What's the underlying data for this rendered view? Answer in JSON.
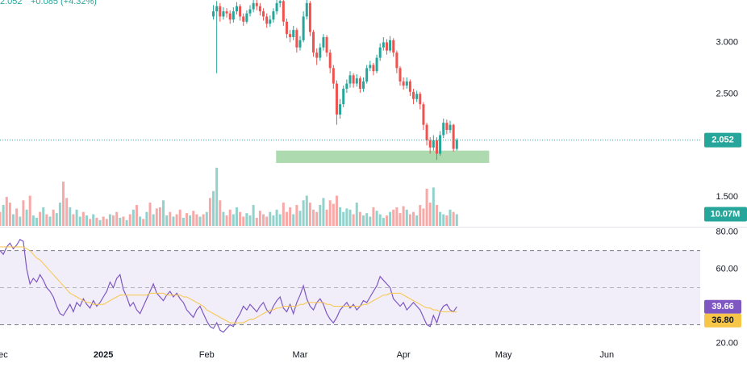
{
  "chart_data": [
    {
      "type": "candlestick",
      "change_label": "+0.085 (+4.32%)",
      "up_color": "#26a69a",
      "down_color": "#ef5350",
      "last_price_line": true,
      "xlim": [
        0,
        210
      ],
      "ylim": [
        1.22,
        3.41
      ],
      "yticks": [
        {
          "value": 3.0,
          "label": "3.000"
        },
        {
          "value": 2.5,
          "label": "2.500"
        },
        {
          "value": 1.5,
          "label": "1.500"
        }
      ],
      "zone": {
        "x": [
          82.8,
          146.7
        ],
        "y": [
          1.83,
          1.95
        ],
        "color": "#a5d6a7"
      },
      "x": [
        64,
        65,
        66,
        67,
        68,
        69,
        70,
        71,
        72,
        73,
        74,
        75,
        76,
        77,
        78,
        79,
        80,
        81,
        82,
        83,
        84,
        85,
        86,
        87,
        88,
        89,
        90,
        91,
        92,
        93,
        94,
        95,
        96,
        97,
        98,
        99,
        100,
        101,
        102,
        103,
        104,
        105,
        106,
        107,
        108,
        109,
        110,
        111,
        112,
        113,
        114,
        115,
        116,
        117,
        118,
        119,
        120,
        121,
        122,
        123,
        124,
        125,
        126,
        127,
        128,
        129,
        130,
        131,
        132,
        133,
        134,
        135,
        136,
        137
      ],
      "open": [
        3.25,
        3.3,
        3.35,
        3.25,
        3.3,
        3.28,
        3.22,
        3.3,
        3.35,
        3.25,
        3.2,
        3.28,
        3.32,
        3.38,
        3.35,
        3.3,
        3.25,
        3.18,
        3.22,
        3.3,
        3.38,
        3.4,
        3.2,
        3.08,
        3.05,
        3.12,
        2.95,
        3.02,
        3.25,
        3.38,
        3.1,
        2.9,
        2.85,
        2.95,
        3.05,
        2.9,
        2.75,
        2.6,
        2.3,
        2.4,
        2.55,
        2.6,
        2.68,
        2.6,
        2.65,
        2.55,
        2.62,
        2.75,
        2.78,
        2.72,
        2.85,
        2.95,
        3.0,
        2.92,
        3.02,
        2.9,
        2.75,
        2.62,
        2.58,
        2.62,
        2.52,
        2.45,
        2.5,
        2.4,
        2.2,
        2.05,
        1.98,
        2.05,
        1.92,
        2.1,
        2.22,
        2.15,
        2.2,
        1.967
      ],
      "high": [
        3.36,
        3.4,
        3.38,
        3.34,
        3.33,
        3.31,
        3.34,
        3.39,
        3.37,
        3.28,
        3.31,
        3.36,
        3.41,
        3.41,
        3.38,
        3.33,
        3.28,
        3.26,
        3.33,
        3.41,
        3.45,
        3.42,
        3.23,
        3.12,
        3.16,
        3.14,
        3.06,
        3.3,
        3.44,
        3.4,
        3.12,
        2.94,
        2.99,
        3.08,
        3.07,
        2.93,
        2.78,
        2.63,
        2.45,
        2.58,
        2.64,
        2.72,
        2.7,
        2.69,
        2.67,
        2.66,
        2.78,
        2.82,
        2.8,
        2.88,
        2.99,
        3.05,
        3.03,
        3.06,
        3.04,
        2.92,
        2.77,
        2.66,
        2.66,
        2.64,
        2.55,
        2.53,
        2.52,
        2.42,
        2.22,
        2.08,
        2.1,
        2.08,
        2.14,
        2.26,
        2.25,
        2.24,
        2.21,
        2.07
      ],
      "low": [
        3.22,
        2.7,
        3.2,
        3.22,
        3.24,
        3.18,
        3.19,
        3.27,
        3.21,
        3.16,
        3.18,
        3.25,
        3.29,
        3.31,
        3.26,
        3.21,
        3.14,
        3.15,
        3.19,
        3.27,
        3.34,
        3.16,
        3.04,
        3.0,
        3.02,
        2.9,
        2.92,
        3.0,
        3.22,
        3.06,
        2.86,
        2.78,
        2.82,
        2.92,
        2.86,
        2.7,
        2.55,
        2.2,
        2.26,
        2.37,
        2.51,
        2.56,
        2.56,
        2.57,
        2.51,
        2.52,
        2.6,
        2.72,
        2.68,
        2.7,
        2.82,
        2.92,
        2.88,
        2.9,
        2.86,
        2.7,
        2.58,
        2.54,
        2.55,
        2.48,
        2.4,
        2.42,
        2.35,
        2.15,
        2.0,
        1.92,
        1.95,
        1.86,
        1.9,
        2.07,
        2.11,
        2.12,
        1.94,
        1.95
      ],
      "close": [
        3.3,
        3.35,
        3.25,
        3.3,
        3.28,
        3.22,
        3.3,
        3.35,
        3.25,
        3.2,
        3.28,
        3.32,
        3.38,
        3.35,
        3.3,
        3.25,
        3.18,
        3.22,
        3.3,
        3.38,
        3.4,
        3.2,
        3.08,
        3.05,
        3.12,
        2.95,
        3.02,
        3.25,
        3.38,
        3.1,
        2.9,
        2.85,
        2.95,
        3.05,
        2.9,
        2.75,
        2.6,
        2.3,
        2.4,
        2.55,
        2.6,
        2.68,
        2.6,
        2.65,
        2.55,
        2.62,
        2.75,
        2.78,
        2.72,
        2.85,
        2.95,
        3.0,
        2.92,
        3.02,
        2.9,
        2.75,
        2.62,
        2.58,
        2.62,
        2.52,
        2.45,
        2.5,
        2.4,
        2.2,
        2.05,
        1.98,
        2.05,
        1.92,
        2.1,
        2.22,
        2.15,
        2.2,
        1.967,
        2.052
      ]
    },
    {
      "type": "bar",
      "xlim": [
        0,
        210
      ],
      "ylim": [
        0,
        52
      ],
      "last_value_label": "10.07M",
      "label_color": "#26a69a",
      "x": [
        0,
        1,
        2,
        3,
        4,
        5,
        6,
        7,
        8,
        9,
        10,
        11,
        12,
        13,
        14,
        15,
        16,
        17,
        18,
        19,
        20,
        21,
        22,
        23,
        24,
        25,
        26,
        27,
        28,
        29,
        30,
        31,
        32,
        33,
        34,
        35,
        36,
        37,
        38,
        39,
        40,
        41,
        42,
        43,
        44,
        45,
        46,
        47,
        48,
        49,
        50,
        51,
        52,
        53,
        54,
        55,
        56,
        57,
        58,
        59,
        60,
        61,
        62,
        63,
        64,
        65,
        66,
        67,
        68,
        69,
        70,
        71,
        72,
        73,
        74,
        75,
        76,
        77,
        78,
        79,
        80,
        81,
        82,
        83,
        84,
        85,
        86,
        87,
        88,
        89,
        90,
        91,
        92,
        93,
        94,
        95,
        96,
        97,
        98,
        99,
        100,
        101,
        102,
        103,
        104,
        105,
        106,
        107,
        108,
        109,
        110,
        111,
        112,
        113,
        114,
        115,
        116,
        117,
        118,
        119,
        120,
        121,
        122,
        123,
        124,
        125,
        126,
        127,
        128,
        129,
        130,
        131,
        132,
        133,
        134,
        135,
        136,
        137
      ],
      "series": [
        {
          "color": "#26a69a80",
          "values": [
            null,
            18,
            null,
            null,
            10,
            null,
            8,
            null,
            14,
            null,
            9,
            7,
            null,
            16,
            null,
            8,
            null,
            11,
            20,
            null,
            null,
            16,
            null,
            14,
            8,
            null,
            9,
            null,
            10,
            null,
            5,
            null,
            null,
            10,
            null,
            null,
            7,
            null,
            5,
            null,
            14,
            null,
            8,
            null,
            12,
            null,
            10,
            null,
            null,
            22,
            9,
            null,
            8,
            null,
            null,
            7,
            null,
            9,
            null,
            null,
            8,
            null,
            12,
            null,
            30,
            50,
            null,
            12,
            null,
            null,
            10,
            16,
            null,
            null,
            11,
            9,
            18,
            null,
            null,
            null,
            null,
            12,
            9,
            14,
            10,
            null,
            null,
            null,
            10,
            null,
            13,
            22,
            26,
            null,
            null,
            null,
            18,
            24,
            null,
            null,
            null,
            null,
            16,
            12,
            15,
            14,
            null,
            20,
            null,
            9,
            11,
            8,
            null,
            13,
            10,
            7,
            null,
            12,
            null,
            null,
            null,
            null,
            14,
            null,
            null,
            9,
            null,
            null,
            null,
            null,
            33,
            null,
            12,
            10,
            null,
            14,
            null,
            10.07
          ]
        },
        {
          "color": "#ef535080",
          "values": [
            12,
            null,
            25,
            20,
            null,
            15,
            null,
            22,
            null,
            26,
            null,
            null,
            12,
            null,
            10,
            null,
            14,
            null,
            null,
            38,
            24,
            null,
            10,
            null,
            null,
            12,
            null,
            6,
            null,
            7,
            null,
            8,
            6,
            null,
            9,
            12,
            null,
            8,
            null,
            10,
            null,
            18,
            null,
            6,
            null,
            20,
            null,
            15,
            16,
            null,
            null,
            12,
            null,
            10,
            14,
            null,
            11,
            null,
            13,
            10,
            null,
            10,
            null,
            24,
            null,
            null,
            22,
            null,
            9,
            14,
            null,
            null,
            12,
            8,
            null,
            null,
            null,
            7,
            13,
            10,
            8,
            null,
            null,
            null,
            null,
            20,
            12,
            16,
            null,
            18,
            null,
            null,
            null,
            20,
            14,
            12,
            null,
            null,
            14,
            22,
            19,
            26,
            null,
            null,
            null,
            null,
            10,
            null,
            12,
            null,
            null,
            null,
            16,
            null,
            null,
            null,
            9,
            null,
            14,
            16,
            11,
            17,
            null,
            10,
            12,
            null,
            18,
            15,
            32,
            20,
            null,
            18,
            null,
            null,
            9,
            null,
            12,
            null
          ]
        }
      ]
    },
    {
      "type": "line",
      "xlim": [
        0,
        210
      ],
      "ylim": [
        18,
        82
      ],
      "bands": [
        30,
        70
      ],
      "midline": 50,
      "band_color": "#7e57c2",
      "yticks": [
        {
          "value": 80,
          "label": "80.00"
        },
        {
          "value": 60,
          "label": "60.00"
        },
        {
          "value": 20,
          "label": "20.00"
        }
      ],
      "xticks": [
        {
          "value": 0,
          "label": "Dec"
        },
        {
          "value": 31,
          "label": "2025"
        },
        {
          "value": 62,
          "label": "Feb"
        },
        {
          "value": 90,
          "label": "Mar"
        },
        {
          "value": 121,
          "label": "Apr"
        },
        {
          "value": 151,
          "label": "May"
        },
        {
          "value": 182,
          "label": "Jun"
        }
      ],
      "x": [
        0,
        1,
        2,
        3,
        4,
        5,
        6,
        7,
        8,
        9,
        10,
        11,
        12,
        13,
        14,
        15,
        16,
        17,
        18,
        19,
        20,
        21,
        22,
        23,
        24,
        25,
        26,
        27,
        28,
        29,
        30,
        31,
        32,
        33,
        34,
        35,
        36,
        37,
        38,
        39,
        40,
        41,
        42,
        43,
        44,
        45,
        46,
        47,
        48,
        49,
        50,
        51,
        52,
        53,
        54,
        55,
        56,
        57,
        58,
        59,
        60,
        61,
        62,
        63,
        64,
        65,
        66,
        67,
        68,
        69,
        70,
        71,
        72,
        73,
        74,
        75,
        76,
        77,
        78,
        79,
        80,
        81,
        82,
        83,
        84,
        85,
        86,
        87,
        88,
        89,
        90,
        91,
        92,
        93,
        94,
        95,
        96,
        97,
        98,
        99,
        100,
        101,
        102,
        103,
        104,
        105,
        106,
        107,
        108,
        109,
        110,
        111,
        112,
        113,
        114,
        115,
        116,
        117,
        118,
        119,
        120,
        121,
        122,
        123,
        124,
        125,
        126,
        127,
        128,
        129,
        130,
        131,
        132,
        133,
        134,
        135,
        136,
        137
      ],
      "series": [
        {
          "color": "#7e57c2",
          "values": [
            70,
            68,
            72,
            74,
            71,
            73,
            76,
            75,
            60,
            52,
            55,
            53,
            57,
            54,
            50,
            48,
            45,
            40,
            36,
            35,
            38,
            41,
            37,
            42,
            40,
            44,
            41,
            39,
            43,
            40,
            42,
            45,
            48,
            53,
            50,
            55,
            57,
            49,
            45,
            40,
            42,
            38,
            36,
            40,
            44,
            48,
            52,
            47,
            45,
            43,
            46,
            48,
            45,
            47,
            44,
            42,
            38,
            36,
            34,
            38,
            40,
            36,
            32,
            29,
            28,
            31,
            27,
            26,
            28,
            30,
            29,
            33,
            36,
            40,
            38,
            41,
            39,
            37,
            40,
            42,
            38,
            36,
            40,
            43,
            45,
            39,
            37,
            41,
            36,
            42,
            46,
            51,
            44,
            40,
            38,
            42,
            44,
            41,
            36,
            33,
            31,
            34,
            38,
            40,
            42,
            39,
            41,
            38,
            40,
            43,
            42,
            45,
            48,
            51,
            56,
            54,
            52,
            50,
            44,
            42,
            40,
            42,
            38,
            40,
            42,
            40,
            38,
            34,
            30,
            29,
            35,
            31,
            37,
            40,
            41,
            38,
            37,
            39.66
          ]
        },
        {
          "color": "#f7c548",
          "last_value_label": "36.80",
          "values": [
            72,
            72,
            72,
            72,
            72,
            72,
            72,
            72,
            71,
            70,
            68,
            66,
            65,
            63,
            61,
            59,
            57,
            55,
            53,
            51,
            49,
            47,
            46,
            45,
            44,
            43,
            42,
            42,
            41,
            41,
            41,
            41,
            42,
            43,
            44,
            45,
            46,
            46,
            46,
            46,
            46,
            46,
            46,
            46,
            46,
            47,
            47,
            47,
            47,
            47,
            46,
            46,
            46,
            46,
            46,
            45,
            45,
            44,
            43,
            42,
            41,
            40,
            38,
            37,
            36,
            35,
            34,
            33,
            32,
            31,
            31,
            31,
            31,
            31,
            32,
            33,
            33,
            34,
            35,
            36,
            37,
            38,
            38,
            39,
            39,
            40,
            40,
            40,
            40,
            40,
            41,
            41,
            42,
            42,
            42,
            42,
            42,
            42,
            41,
            41,
            40,
            40,
            40,
            40,
            40,
            40,
            40,
            40,
            40,
            41,
            41,
            42,
            43,
            44,
            45,
            46,
            46,
            47,
            47,
            47,
            47,
            46,
            45,
            44,
            43,
            42,
            41,
            40,
            39,
            39,
            38,
            38,
            37,
            37,
            37,
            37,
            37,
            36.8
          ]
        }
      ]
    }
  ]
}
